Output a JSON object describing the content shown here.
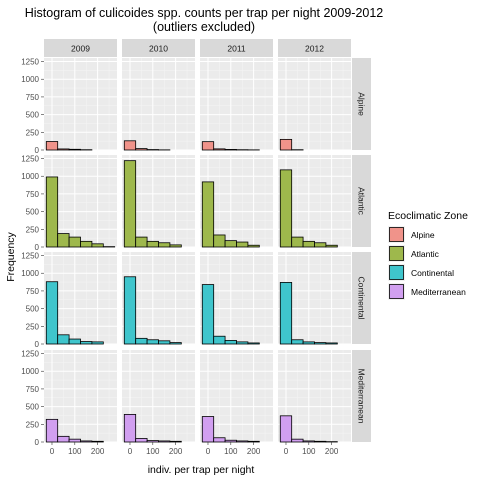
{
  "chart_data": {
    "type": "bar",
    "title": "Histogram of culicoides spp. counts per trap per night 2009-2012",
    "subtitle": "(outliers excluded)",
    "xlabel": "indiv. per trap per night",
    "ylabel": "Frequency",
    "columns": [
      "2009",
      "2010",
      "2011",
      "2012"
    ],
    "rows": [
      "Alpine",
      "Atlantic",
      "Continental",
      "Mediterranean"
    ],
    "bin_starts": [
      -25,
      25,
      75,
      125,
      175,
      225
    ],
    "bin_width": 50,
    "xlim": [
      -35,
      285
    ],
    "ylim": [
      0,
      1300
    ],
    "x_ticks": [
      "0",
      "100",
      "200"
    ],
    "y_ticks": [
      "0",
      "250",
      "500",
      "750",
      "1000",
      "1250"
    ],
    "grid": true,
    "legend": {
      "title": "Ecoclimatic Zone",
      "position": "right",
      "entries": [
        {
          "name": "Alpine",
          "color": "#F0938A"
        },
        {
          "name": "Atlantic",
          "color": "#9EB84C"
        },
        {
          "name": "Continental",
          "color": "#3FC5CC"
        },
        {
          "name": "Mediterranean",
          "color": "#D19FF0"
        }
      ]
    },
    "series": [
      {
        "name": "Alpine",
        "values": {
          "2009": [
            120,
            15,
            10,
            4,
            0,
            0
          ],
          "2010": [
            130,
            20,
            6,
            2,
            0,
            0
          ],
          "2011": [
            118,
            16,
            8,
            4,
            2,
            0
          ],
          "2012": [
            150,
            4,
            0,
            0,
            0,
            0
          ]
        }
      },
      {
        "name": "Atlantic",
        "values": {
          "2009": [
            990,
            190,
            140,
            80,
            45,
            5
          ],
          "2010": [
            1220,
            140,
            80,
            60,
            30,
            0
          ],
          "2011": [
            920,
            170,
            90,
            70,
            25,
            0
          ],
          "2012": [
            1090,
            140,
            80,
            60,
            25,
            0
          ]
        }
      },
      {
        "name": "Continental",
        "values": {
          "2009": [
            880,
            130,
            70,
            35,
            30,
            0
          ],
          "2010": [
            950,
            80,
            60,
            45,
            20,
            0
          ],
          "2011": [
            840,
            110,
            50,
            30,
            15,
            0
          ],
          "2012": [
            870,
            60,
            30,
            20,
            15,
            0
          ]
        }
      },
      {
        "name": "Mediterranean",
        "values": {
          "2009": [
            320,
            80,
            40,
            15,
            10,
            0
          ],
          "2010": [
            390,
            50,
            20,
            15,
            10,
            0
          ],
          "2011": [
            360,
            60,
            25,
            15,
            10,
            0
          ],
          "2012": [
            370,
            40,
            15,
            10,
            5,
            0
          ]
        }
      }
    ]
  }
}
